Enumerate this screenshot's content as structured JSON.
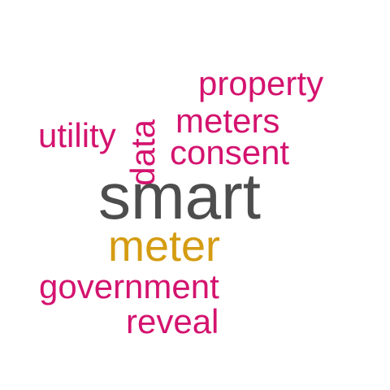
{
  "words": {
    "smart": "smart",
    "meter": "meter",
    "property": "property",
    "meters": "meters",
    "consent": "consent",
    "utility": "utility",
    "data": "data",
    "government": "government",
    "reveal": "reveal"
  },
  "colors": {
    "primary": "#4d4d4d",
    "secondary": "#d59c12",
    "accent": "#d4136f",
    "background": "#ffffff"
  }
}
